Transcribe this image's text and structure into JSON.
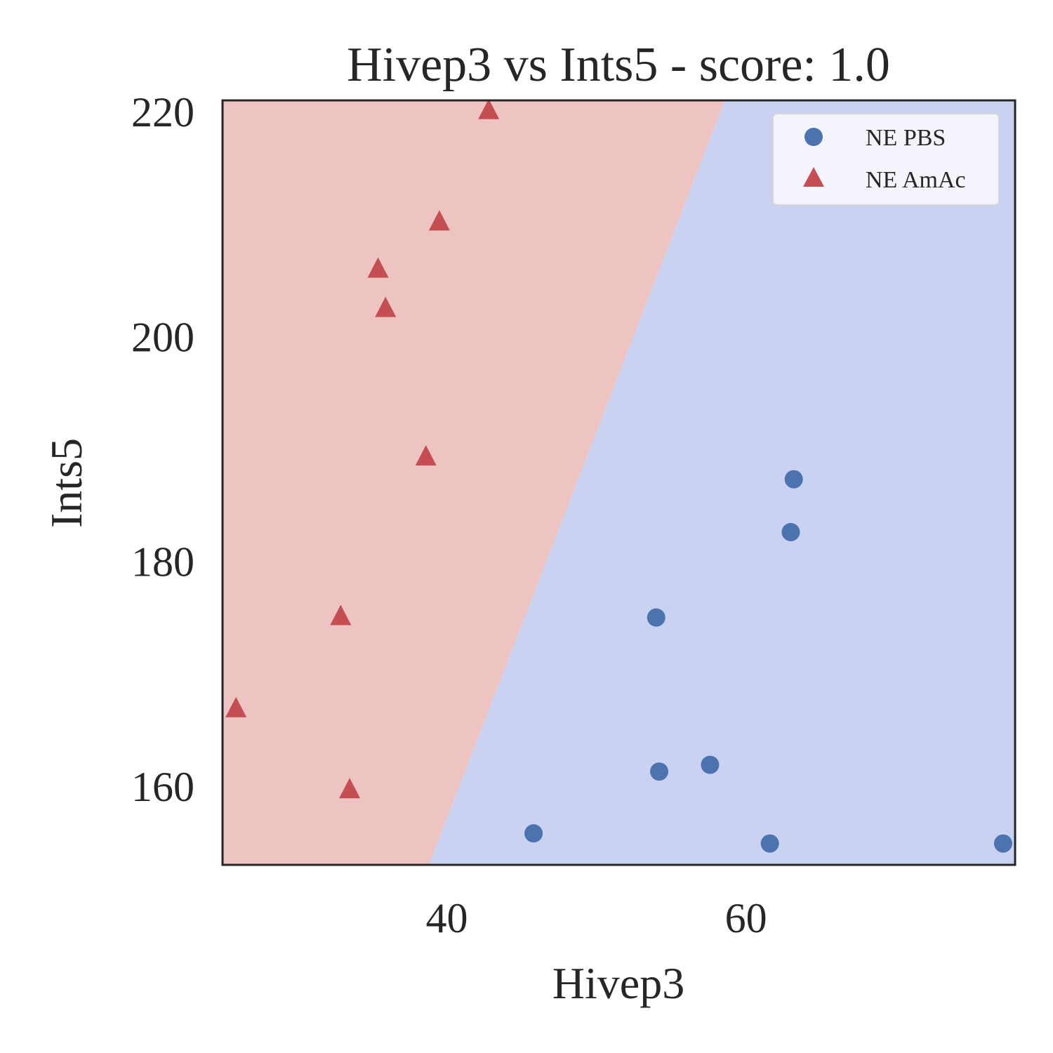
{
  "chart_data": {
    "type": "scatter",
    "title": "Hivep3 vs Ints5 - score: 1.0",
    "xlabel": "Hivep3",
    "ylabel": "Ints5",
    "xlim": [
      25.0,
      78.0
    ],
    "ylim": [
      153.0,
      221.0
    ],
    "xticks": [
      40,
      60
    ],
    "yticks": [
      160,
      180,
      200,
      220
    ],
    "grid": false,
    "legend": {
      "position": "top-right"
    },
    "decision_boundary": {
      "points": [
        [
          38.8,
          153.0
        ],
        [
          58.6,
          221.0
        ]
      ],
      "left_region_color": "#eec4c3",
      "right_region_color": "#c9d2f1"
    },
    "series": [
      {
        "name": "NE PBS",
        "marker": "circle",
        "color": "#4c72b0",
        "points": [
          [
            45.8,
            155.8
          ],
          [
            54.0,
            175.0
          ],
          [
            54.2,
            161.3
          ],
          [
            57.6,
            161.9
          ],
          [
            61.6,
            154.9
          ],
          [
            63.0,
            182.6
          ],
          [
            63.2,
            187.3
          ],
          [
            77.2,
            154.9
          ]
        ]
      },
      {
        "name": "NE AmAc",
        "marker": "triangle",
        "color": "#c44e52",
        "points": [
          [
            25.9,
            167.0
          ],
          [
            32.9,
            175.2
          ],
          [
            33.5,
            159.8
          ],
          [
            35.4,
            206.1
          ],
          [
            35.9,
            202.6
          ],
          [
            38.6,
            189.4
          ],
          [
            39.5,
            210.3
          ],
          [
            42.8,
            220.2
          ]
        ]
      }
    ]
  }
}
